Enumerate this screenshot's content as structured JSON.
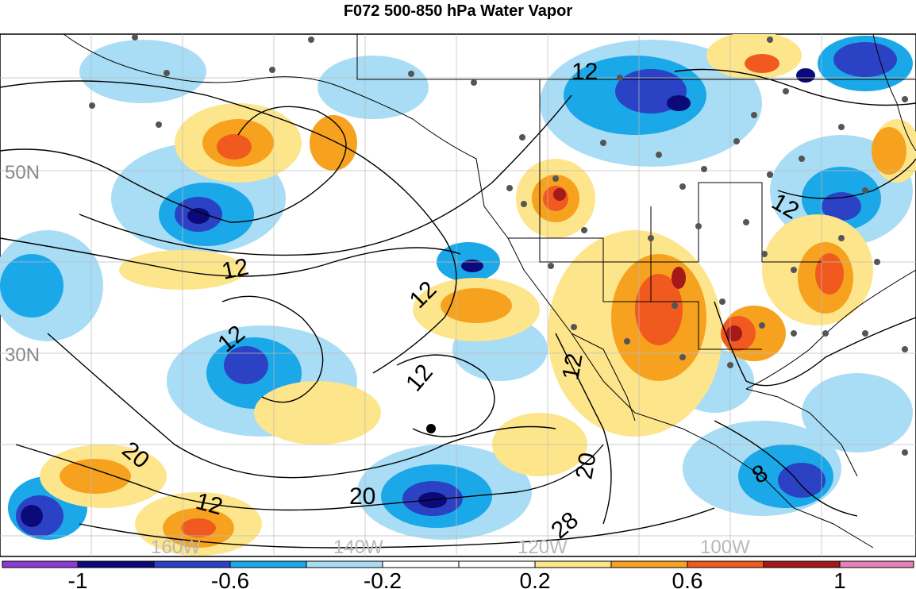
{
  "title": "F072 500-850 hPa Water Vapor",
  "colors": {
    "neg_100": "#0c0a7a",
    "neg_80": "#2c42c4",
    "neg_60": "#1aa8e8",
    "neg_40": "#a9dcf5",
    "neutral": "#ffffff",
    "pos_20": "#fde58c",
    "pos_40": "#f7a21f",
    "pos_60": "#f05a1e",
    "pos_80": "#a31a18",
    "pos_100": "#e581b8",
    "violet": "#8a3bd1"
  },
  "latitude_labels": [
    "50N",
    "30N"
  ],
  "longitude_labels": [
    "160W",
    "140W",
    "120W",
    "100W"
  ],
  "contour_labels": [
    "12",
    "12",
    "12",
    "12",
    "12",
    "12",
    "12",
    "12",
    "20",
    "20",
    "20",
    "28",
    "8"
  ],
  "colorbar": {
    "tick_labels": [
      "-1",
      "-0.6",
      "-0.2",
      "0.2",
      "0.6",
      "1"
    ],
    "bins": [
      "violet",
      "neg_100",
      "neg_80",
      "neg_60",
      "neg_40",
      "neutral",
      "pos_20",
      "pos_40",
      "pos_60",
      "pos_80",
      "pos_100",
      "violet2"
    ]
  }
}
